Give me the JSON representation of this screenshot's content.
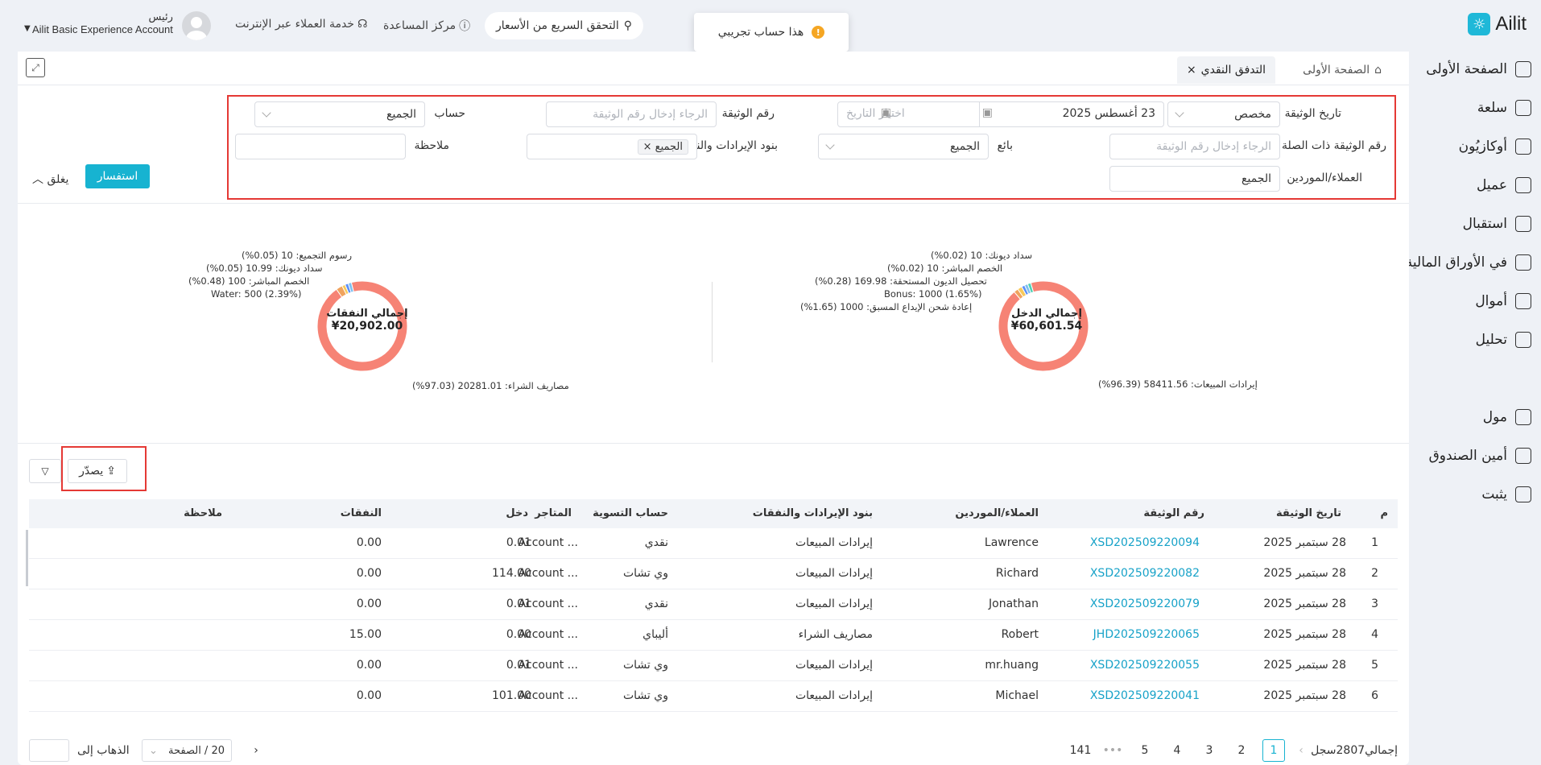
{
  "app": {
    "logo": "Ailit"
  },
  "header": {
    "price_check": "التحقق السريع من الأسعار",
    "help_center": "مركز المساعدة",
    "customer_service": "خدمة العملاء عبر الإنترنت",
    "user_name": "رئيس",
    "account_name": "Ailit Basic Experience Account",
    "toast": "هذا حساب تجريبي"
  },
  "sidebar": {
    "items": [
      {
        "label": "الصفحة الأولى",
        "icon": "home-icon"
      },
      {
        "label": "سلعة",
        "icon": "box-icon"
      },
      {
        "label": "أوكازيُون",
        "icon": "clipboard-icon"
      },
      {
        "label": "عميل",
        "icon": "person-icon"
      },
      {
        "label": "استقبال",
        "icon": "book-icon"
      },
      {
        "label": "في الأوراق المالية",
        "icon": "warehouse-icon"
      },
      {
        "label": "أموال",
        "icon": "wallet-icon"
      },
      {
        "label": "تحليل",
        "icon": "chart-icon"
      },
      {
        "label": "مول",
        "icon": "shop-icon"
      },
      {
        "label": "أمين الصندوق",
        "icon": "monitor-icon"
      },
      {
        "label": "يثبت",
        "icon": "gear-icon"
      }
    ]
  },
  "tabs": [
    {
      "label": "الصفحة الأولى"
    },
    {
      "label": "التدفق النقدي"
    }
  ],
  "filters": {
    "doc_date_label": "تاريخ الوثيقة",
    "doc_date_mode": "مخصص",
    "date_from": "23 أغسطس 2025",
    "date_to_placeholder": "اختيار التاريخ",
    "doc_no_label": "رقم الوثيقة",
    "doc_no_placeholder": "الرجاء إدخال رقم الوثيقة",
    "account_label": "حساب",
    "account_value": "الجميع",
    "related_doc_label": "رقم الوثيقة ذات الصلة",
    "related_doc_placeholder": "الرجاء إدخال رقم الوثيقة",
    "seller_label": "بائع",
    "seller_value": "الجميع",
    "income_items_label": "بنود الإيرادات والنفقات",
    "income_items_tag": "الجميع",
    "note_label": "ملاحظة",
    "customers_label": "العملاء/الموردين",
    "customers_value": "الجميع",
    "query_button": "استفسار",
    "collapse": "يغلق"
  },
  "chart_data": [
    {
      "type": "pie",
      "title": "إجمالي الدخل",
      "total": "¥60,601.54",
      "slices": [
        {
          "label": "إيرادات المبيعات",
          "value": 58411.56,
          "pct": "96.39%",
          "color": "#f68375"
        },
        {
          "label": "إعادة شحن الإيداع المسبق",
          "value": 1000,
          "pct": "1.65%",
          "color": "#f0a35e"
        },
        {
          "label": "Bonus",
          "value": 1000,
          "pct": "1.65%",
          "color": "#f7c95b"
        },
        {
          "label": "تحصيل الديون المستحقة",
          "value": 169.98,
          "pct": "0.28%",
          "color": "#5b8ff9"
        },
        {
          "label": "الخصم المباشر",
          "value": 10,
          "pct": "0.02%",
          "color": "#7cc0f0"
        },
        {
          "label": "سداد ديونك",
          "value": 10,
          "pct": "0.02%",
          "color": "#4fd1b5"
        }
      ]
    },
    {
      "type": "pie",
      "title": "إجمالي النفقات",
      "total": "¥20,902.00",
      "slices": [
        {
          "label": "مصاريف الشراء",
          "value": 20281.01,
          "pct": "97.03%",
          "color": "#f68375"
        },
        {
          "label": "Water",
          "value": 500,
          "pct": "2.39%",
          "color": "#f0a35e"
        },
        {
          "label": "الخصم المباشر",
          "value": 100,
          "pct": "0.48%",
          "color": "#f7c95b"
        },
        {
          "label": "سداد ديونك",
          "value": 10.99,
          "pct": "0.05%",
          "color": "#5b8ff9"
        },
        {
          "label": "رسوم التجميع",
          "value": 10,
          "pct": "0.05%",
          "color": "#7cc0f0"
        }
      ]
    }
  ],
  "legend_text": {
    "income": [
      "إيرادات المبيعات: 58411.56 (96.39%)",
      "إعادة شحن الإيداع المسبق: 1000 (1.65%)",
      "Bonus: 1000 (1.65%)",
      "تحصيل الديون المستحقة: 169.98 (0.28%)",
      "الخصم المباشر: 10 (0.02%)",
      "سداد ديونك: 10 (0.02%)"
    ],
    "expense": [
      "مصاريف الشراء: 20281.01 (97.03%)",
      "Water: 500 (2.39%)",
      "الخصم المباشر: 100 (0.48%)",
      "سداد ديونك: 10.99 (0.05%)",
      "رسوم التجميع: 10 (0.05%)"
    ]
  },
  "export_button": "يصدّر",
  "table": {
    "headers": [
      "م",
      "تاريخ الوثيقة",
      "رقم الوثيقة",
      "العملاء/الموردين",
      "بنود الإيرادات والنفقات",
      "حساب التسوية",
      "المتاجر",
      "دخل",
      "النفقات",
      "ملاحظة"
    ],
    "rows": [
      {
        "no": "1",
        "date": "28 سبتمبر 2025",
        "doc": "XSD202509220094",
        "party": "Lawrence",
        "item": "إيرادات المبيعات",
        "account": "نقدي",
        "store": "Account ...",
        "income": "0.01",
        "expense": "0.00",
        "note": ""
      },
      {
        "no": "2",
        "date": "28 سبتمبر 2025",
        "doc": "XSD202509220082",
        "party": "Richard",
        "item": "إيرادات المبيعات",
        "account": "وي تشات",
        "store": "Account ...",
        "income": "114.00",
        "expense": "0.00",
        "note": ""
      },
      {
        "no": "3",
        "date": "28 سبتمبر 2025",
        "doc": "XSD202509220079",
        "party": "Jonathan",
        "item": "إيرادات المبيعات",
        "account": "نقدي",
        "store": "Account ...",
        "income": "0.01",
        "expense": "0.00",
        "note": ""
      },
      {
        "no": "4",
        "date": "28 سبتمبر 2025",
        "doc": "JHD202509220065",
        "party": "Robert",
        "item": "مصاريف الشراء",
        "account": "أليباي",
        "store": "Account ...",
        "income": "0.00",
        "expense": "15.00",
        "note": ""
      },
      {
        "no": "5",
        "date": "28 سبتمبر 2025",
        "doc": "XSD202509220055",
        "party": "mr.huang",
        "item": "إيرادات المبيعات",
        "account": "وي تشات",
        "store": "Account ...",
        "income": "0.01",
        "expense": "0.00",
        "note": ""
      },
      {
        "no": "6",
        "date": "28 سبتمبر 2025",
        "doc": "XSD202509220041",
        "party": "Michael",
        "item": "إيرادات المبيعات",
        "account": "وي تشات",
        "store": "Account ...",
        "income": "101.00",
        "expense": "0.00",
        "note": ""
      }
    ]
  },
  "pagination": {
    "total": "إجمالي2807سجل",
    "pages": [
      "1",
      "2",
      "3",
      "4",
      "5",
      "•••",
      "141"
    ],
    "page_size": "20 / الصفحة",
    "goto": "الذهاب إلى"
  }
}
